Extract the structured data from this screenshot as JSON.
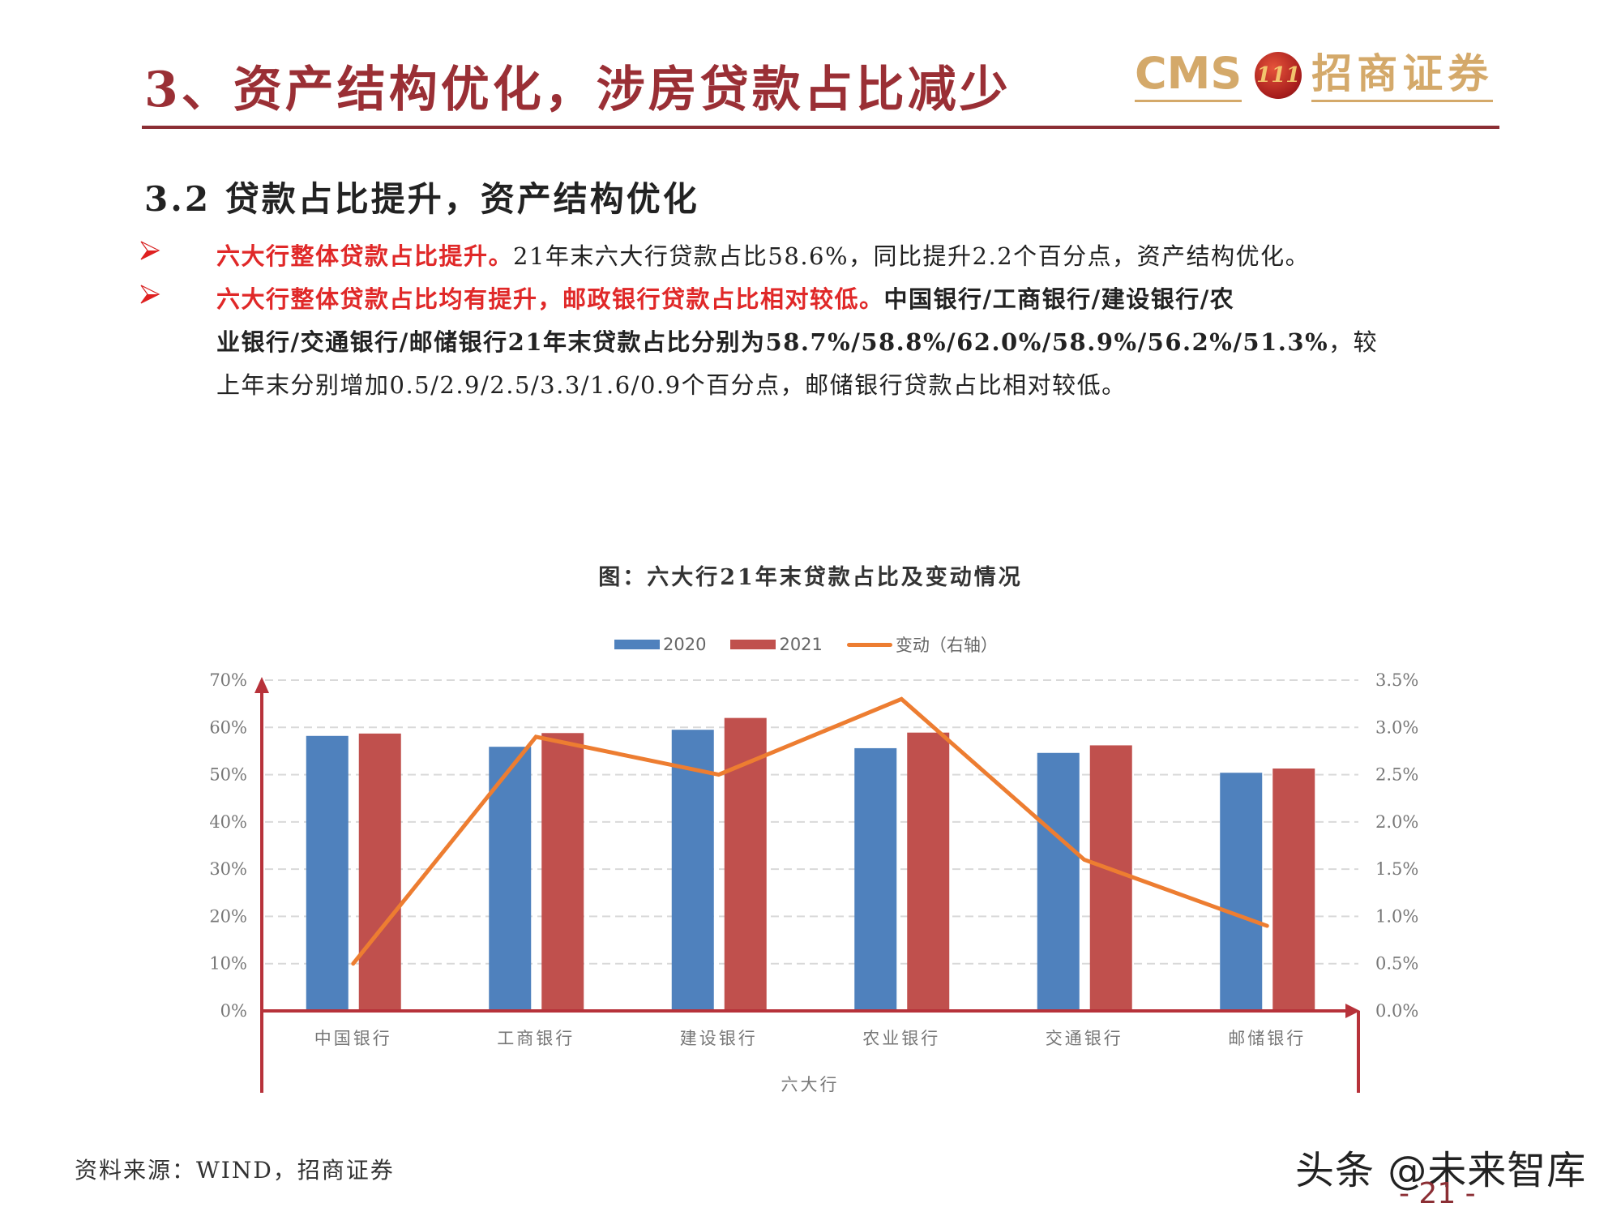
{
  "header": {
    "title": "3、资产结构优化，涉房贷款占比减少",
    "logo": {
      "cms": "CMS",
      "mark": "111",
      "cn": "招商证券"
    }
  },
  "section": {
    "subtitle": "3.2 贷款占比提升，资产结构优化",
    "bullets": [
      {
        "highlight": "六大行整体贷款占比提升。",
        "text": "21年末六大行贷款占比58.6%，同比提升2.2个百分点，资产结构优化。"
      },
      {
        "highlight": "六大行整体贷款占比均有提升，邮政银行贷款占比相对较低。",
        "bold_line1": "中国银行/工商银行/建设银行/农",
        "bold_line2": "业银行/交通银行/邮储银行21年末贷款占比分别为58.7%/58.8%/62.0%/58.9%/56.2%/51.3%",
        "line2_tail": "，较",
        "line3": "上年末分别增加0.5/2.9/2.5/3.3/1.6/0.9个百分点，邮储银行贷款占比相对较低。"
      }
    ]
  },
  "chart_title": "图：六大行21年末贷款占比及变动情况",
  "legend": [
    {
      "label": "2020",
      "color": "#4f81bd",
      "kind": "bar"
    },
    {
      "label": "2021",
      "color": "#c0504d",
      "kind": "bar"
    },
    {
      "label": "变动（右轴）",
      "color": "#ed7d31",
      "kind": "line"
    }
  ],
  "chart_data": {
    "type": "bar",
    "title": "图：六大行21年末贷款占比及变动情况",
    "categories": [
      "中国银行",
      "工商银行",
      "建设银行",
      "农业银行",
      "交通银行",
      "邮储银行"
    ],
    "series": [
      {
        "name": "2020",
        "type": "bar",
        "axis": "left",
        "color": "#4f81bd",
        "values": [
          58.2,
          55.9,
          59.5,
          55.6,
          54.6,
          50.4
        ]
      },
      {
        "name": "2021",
        "type": "bar",
        "axis": "left",
        "color": "#c0504d",
        "values": [
          58.7,
          58.8,
          62.0,
          58.9,
          56.2,
          51.3
        ]
      },
      {
        "name": "变动（右轴）",
        "type": "line",
        "axis": "right",
        "color": "#ed7d31",
        "values": [
          0.5,
          2.9,
          2.5,
          3.3,
          1.6,
          0.9
        ]
      }
    ],
    "xlabel": "六大行",
    "ylabel": "",
    "ylim": [
      0,
      70
    ],
    "y_ticks": [
      "0%",
      "10%",
      "20%",
      "30%",
      "40%",
      "50%",
      "60%",
      "70%"
    ],
    "y2lim": [
      0,
      3.5
    ],
    "y2_ticks": [
      "0.0%",
      "0.5%",
      "1.0%",
      "1.5%",
      "2.0%",
      "2.5%",
      "3.0%",
      "3.5%"
    ],
    "grid": "dashed horizontal",
    "legend_position": "top"
  },
  "footer": {
    "source": "资料来源：WIND，招商证券",
    "watermark": "头条 @未来智库",
    "page": "- 21 -"
  }
}
